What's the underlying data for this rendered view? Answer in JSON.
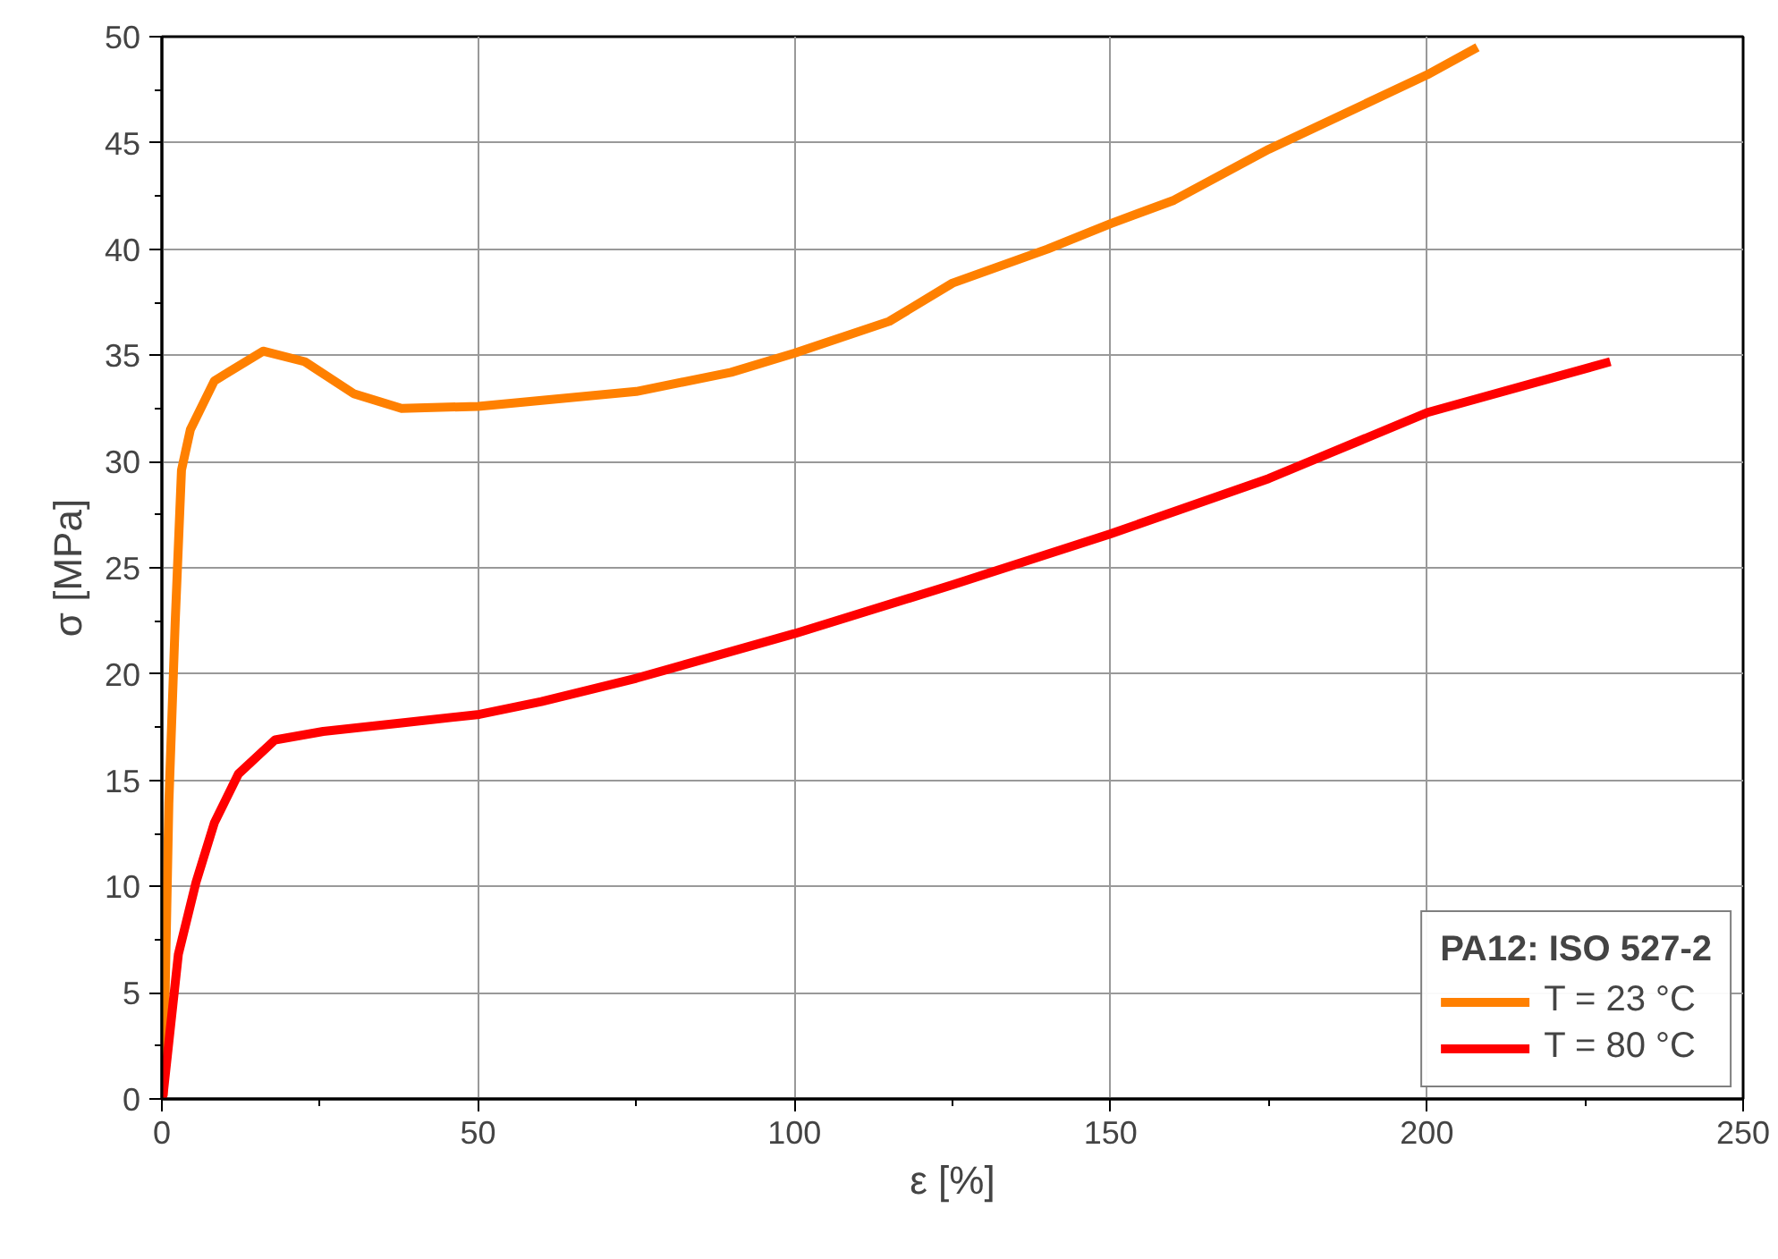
{
  "chart_data": {
    "type": "line",
    "xlabel": "ε [%]",
    "ylabel": "σ [MPa]",
    "legend_title": "PA12: ISO 527-2",
    "xlim": [
      0,
      250
    ],
    "ylim": [
      0,
      50
    ],
    "xticks": [
      0,
      50,
      100,
      150,
      200,
      250
    ],
    "yticks": [
      0,
      5,
      10,
      15,
      20,
      25,
      30,
      35,
      40,
      45,
      50
    ],
    "grid": true,
    "legend": "bottom right",
    "line_style": "solid",
    "series": [
      {
        "name": "T = 23 °C",
        "color": "#ff8000",
        "x": [
          0,
          0.2,
          1.1,
          2.1,
          3.1,
          4.5,
          8.3,
          16,
          22.6,
          30.3,
          37.9,
          50,
          75,
          90,
          100,
          115,
          125,
          140,
          150,
          160,
          175,
          185,
          200,
          208
        ],
        "values": [
          0,
          0.2,
          13.9,
          22.4,
          29.6,
          31.5,
          33.8,
          35.2,
          34.7,
          33.2,
          32.5,
          32.6,
          33.3,
          34.2,
          35.1,
          36.6,
          38.4,
          40.0,
          41.2,
          42.3,
          44.7,
          46.1,
          48.2,
          49.5
        ]
      },
      {
        "name": "T = 80 °C",
        "color": "#ff0000",
        "x": [
          0,
          0.2,
          2.6,
          5.4,
          8.3,
          12.1,
          17.9,
          25.5,
          37.9,
          50.2,
          60,
          75,
          100,
          125,
          150,
          175,
          200,
          229
        ],
        "values": [
          0,
          0.2,
          6.8,
          10.2,
          13.0,
          15.3,
          16.9,
          17.3,
          17.7,
          18.1,
          18.7,
          19.8,
          21.9,
          24.2,
          26.6,
          29.2,
          32.3,
          34.7
        ]
      }
    ]
  }
}
